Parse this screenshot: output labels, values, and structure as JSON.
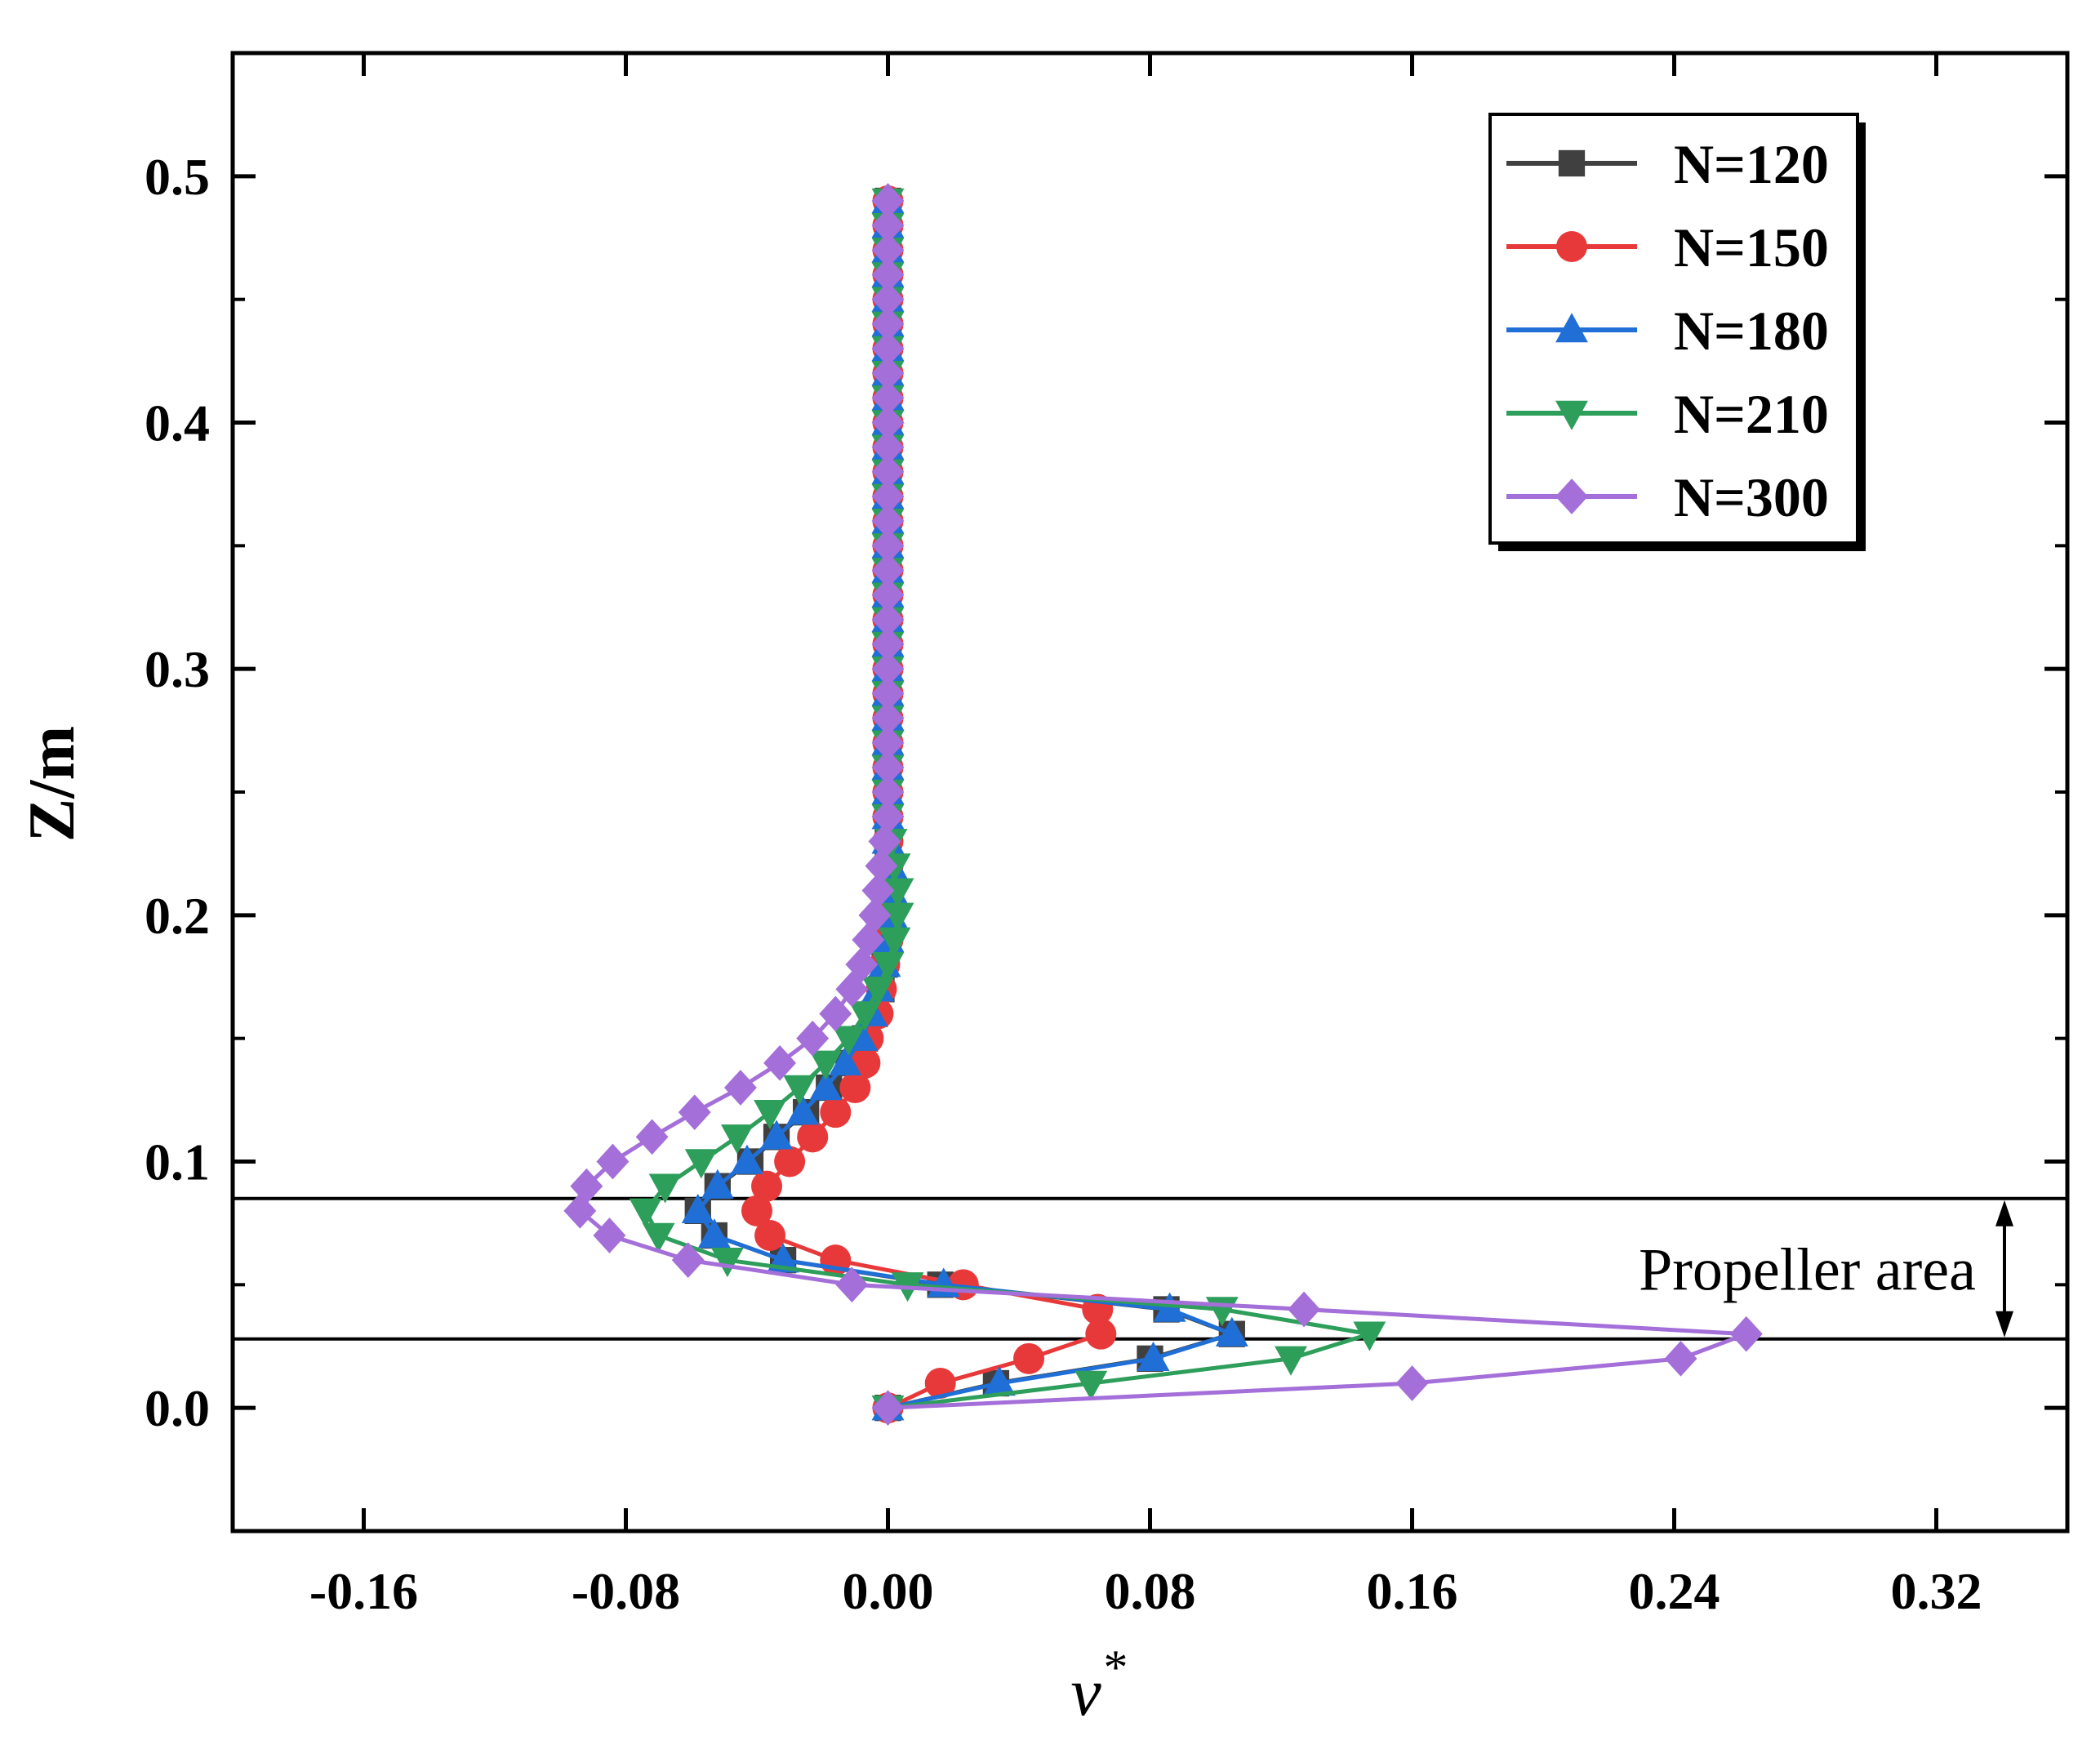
{
  "chart_data": {
    "type": "line",
    "title": "",
    "xlabel": "ν*",
    "ylabel": "Z/m",
    "xlim": [
      -0.2,
      0.36
    ],
    "ylim": [
      -0.05,
      0.55
    ],
    "xticks": [
      -0.16,
      -0.08,
      0.0,
      0.08,
      0.16,
      0.24,
      0.32
    ],
    "xtick_labels": [
      "-0.16",
      "-0.08",
      "0.00",
      "0.08",
      "0.16",
      "0.24",
      "0.32"
    ],
    "yticks": [
      0.0,
      0.1,
      0.2,
      0.3,
      0.4,
      0.5
    ],
    "ytick_labels": [
      "0.0",
      "0.1",
      "0.2",
      "0.3",
      "0.4",
      "0.5"
    ],
    "grid": false,
    "legend_position": "top-right",
    "annotation": {
      "text": "Propeller area",
      "z_top": 0.085,
      "z_bottom": 0.028
    },
    "series": [
      {
        "name": "N=120",
        "color": "#404040",
        "marker": "square",
        "z": [
          0.0,
          0.01,
          0.02,
          0.03,
          0.04,
          0.05,
          0.06,
          0.07,
          0.08,
          0.09,
          0.1,
          0.11,
          0.12,
          0.13,
          0.14,
          0.15,
          0.16,
          0.17,
          0.18,
          0.19,
          0.2,
          0.21,
          0.22,
          0.23,
          0.24,
          0.25,
          0.26,
          0.27,
          0.28,
          0.29,
          0.3,
          0.31,
          0.32,
          0.33,
          0.34,
          0.35,
          0.36,
          0.37,
          0.38,
          0.39,
          0.4,
          0.41,
          0.42,
          0.43,
          0.44,
          0.45,
          0.46,
          0.47,
          0.48,
          0.49
        ],
        "v": [
          0.0,
          0.033,
          0.08,
          0.105,
          0.085,
          0.016,
          -0.032,
          -0.053,
          -0.058,
          -0.052,
          -0.042,
          -0.034,
          -0.025,
          -0.018,
          -0.012,
          -0.007,
          -0.004,
          -0.002,
          -0.001,
          0.0,
          0.0,
          0.0,
          0.0,
          0.0,
          0.0,
          0.0,
          0.0,
          0.0,
          0.0,
          0.0,
          0.0,
          0.0,
          0.0,
          0.0,
          0.0,
          0.0,
          0.0,
          0.0,
          0.0,
          0.0,
          0.0,
          0.0,
          0.0,
          0.0,
          0.0,
          0.0,
          0.0,
          0.0,
          0.0,
          0.0
        ]
      },
      {
        "name": "N=150",
        "color": "#e8393a",
        "marker": "circle",
        "z": [
          0.0,
          0.01,
          0.02,
          0.03,
          0.04,
          0.05,
          0.06,
          0.07,
          0.08,
          0.09,
          0.1,
          0.11,
          0.12,
          0.13,
          0.14,
          0.15,
          0.16,
          0.17,
          0.18,
          0.19,
          0.2,
          0.21,
          0.22,
          0.23,
          0.24,
          0.25,
          0.26,
          0.27,
          0.28,
          0.29,
          0.3,
          0.31,
          0.32,
          0.33,
          0.34,
          0.35,
          0.36,
          0.37,
          0.38,
          0.39,
          0.4,
          0.41,
          0.42,
          0.43,
          0.44,
          0.45,
          0.46,
          0.47,
          0.48,
          0.49
        ],
        "v": [
          0.0,
          0.016,
          0.043,
          0.065,
          0.064,
          0.023,
          -0.016,
          -0.036,
          -0.04,
          -0.037,
          -0.03,
          -0.023,
          -0.016,
          -0.01,
          -0.007,
          -0.006,
          -0.003,
          -0.002,
          -0.001,
          0.0,
          0.0,
          0.0,
          0.0,
          0.0,
          0.0,
          0.0,
          0.0,
          0.0,
          0.0,
          0.0,
          0.0,
          0.0,
          0.0,
          0.0,
          0.0,
          0.0,
          0.0,
          0.0,
          0.0,
          0.0,
          0.0,
          0.0,
          0.0,
          0.0,
          0.0,
          0.0,
          0.0,
          0.0,
          0.0,
          0.0
        ]
      },
      {
        "name": "N=180",
        "color": "#1f6fd6",
        "marker": "triangle-up",
        "z": [
          0.0,
          0.01,
          0.02,
          0.03,
          0.04,
          0.05,
          0.06,
          0.07,
          0.08,
          0.09,
          0.1,
          0.11,
          0.12,
          0.13,
          0.14,
          0.15,
          0.16,
          0.17,
          0.18,
          0.19,
          0.2,
          0.21,
          0.22,
          0.23,
          0.24,
          0.25,
          0.26,
          0.27,
          0.28,
          0.29,
          0.3,
          0.31,
          0.32,
          0.33,
          0.34,
          0.35,
          0.36,
          0.37,
          0.38,
          0.39,
          0.4,
          0.41,
          0.42,
          0.43,
          0.44,
          0.45,
          0.46,
          0.47,
          0.48,
          0.49
        ],
        "v": [
          0.0,
          0.034,
          0.081,
          0.105,
          0.086,
          0.017,
          -0.032,
          -0.053,
          -0.058,
          -0.052,
          -0.043,
          -0.034,
          -0.026,
          -0.019,
          -0.013,
          -0.008,
          -0.005,
          -0.003,
          -0.001,
          0.0,
          0.001,
          0.001,
          0.001,
          0.0,
          0.0,
          0.0,
          0.0,
          0.0,
          0.0,
          0.0,
          0.0,
          0.0,
          0.0,
          0.0,
          0.0,
          0.0,
          0.0,
          0.0,
          0.0,
          0.0,
          0.0,
          0.0,
          0.0,
          0.0,
          0.0,
          0.0,
          0.0,
          0.0,
          0.0,
          0.0
        ]
      },
      {
        "name": "N=210",
        "color": "#2e9e5b",
        "marker": "triangle-down",
        "z": [
          0.0,
          0.01,
          0.02,
          0.03,
          0.04,
          0.05,
          0.06,
          0.07,
          0.08,
          0.09,
          0.1,
          0.11,
          0.12,
          0.13,
          0.14,
          0.15,
          0.16,
          0.17,
          0.18,
          0.19,
          0.2,
          0.21,
          0.22,
          0.23,
          0.24,
          0.25,
          0.26,
          0.27,
          0.28,
          0.29,
          0.3,
          0.31,
          0.32,
          0.33,
          0.34,
          0.35,
          0.36,
          0.37,
          0.38,
          0.39,
          0.4,
          0.41,
          0.42,
          0.43,
          0.44,
          0.45,
          0.46,
          0.47,
          0.48,
          0.49
        ],
        "v": [
          0.0,
          0.062,
          0.123,
          0.147,
          0.102,
          0.006,
          -0.049,
          -0.07,
          -0.074,
          -0.068,
          -0.057,
          -0.046,
          -0.036,
          -0.027,
          -0.019,
          -0.012,
          -0.007,
          -0.003,
          0.0,
          0.002,
          0.003,
          0.003,
          0.002,
          0.001,
          0.0,
          0.0,
          0.0,
          0.0,
          0.0,
          0.0,
          0.0,
          0.0,
          0.0,
          0.0,
          0.0,
          0.0,
          0.0,
          0.0,
          0.0,
          0.0,
          0.0,
          0.0,
          0.0,
          0.0,
          0.0,
          0.0,
          0.0,
          0.0,
          0.0,
          0.0
        ]
      },
      {
        "name": "N=300",
        "color": "#a46fd9",
        "marker": "diamond",
        "z": [
          0.0,
          0.01,
          0.02,
          0.03,
          0.04,
          0.05,
          0.06,
          0.07,
          0.08,
          0.09,
          0.1,
          0.11,
          0.12,
          0.13,
          0.14,
          0.15,
          0.16,
          0.17,
          0.18,
          0.19,
          0.2,
          0.21,
          0.22,
          0.23,
          0.24,
          0.25,
          0.26,
          0.27,
          0.28,
          0.29,
          0.3,
          0.31,
          0.32,
          0.33,
          0.34,
          0.35,
          0.36,
          0.37,
          0.38,
          0.39,
          0.4,
          0.41,
          0.42,
          0.43,
          0.44,
          0.45,
          0.46,
          0.47,
          0.48,
          0.49
        ],
        "v": [
          0.0,
          0.16,
          0.242,
          0.262,
          0.127,
          -0.011,
          -0.061,
          -0.085,
          -0.094,
          -0.092,
          -0.084,
          -0.072,
          -0.059,
          -0.045,
          -0.033,
          -0.023,
          -0.016,
          -0.011,
          -0.008,
          -0.006,
          -0.004,
          -0.003,
          -0.002,
          -0.001,
          0.0,
          0.0,
          0.0,
          0.0,
          0.0,
          0.0,
          0.0,
          0.0,
          0.0,
          0.0,
          0.0,
          0.0,
          0.0,
          0.0,
          0.0,
          0.0,
          0.0,
          0.0,
          0.0,
          0.0,
          0.0,
          0.0,
          0.0,
          0.0,
          0.0,
          0.0
        ]
      }
    ]
  }
}
